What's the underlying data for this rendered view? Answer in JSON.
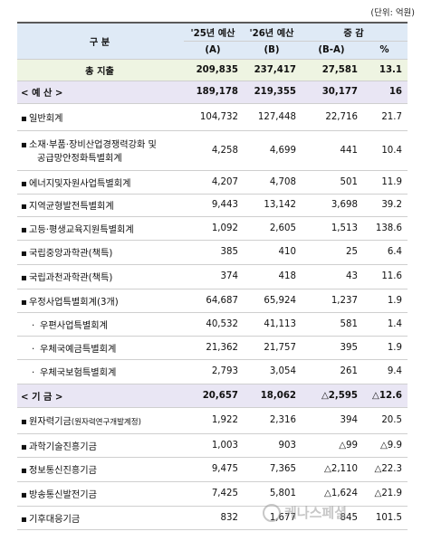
{
  "unit_note": "(단위: 억원)",
  "header": {
    "category": "구   분",
    "col_a_line1": "'25년 예산",
    "col_a_line2": "(A)",
    "col_b_line1": "'26년 예산",
    "col_b_line2": "(B)",
    "change_label": "증 감",
    "change_diff": "(B-A)",
    "change_pct": "%"
  },
  "total": {
    "name": "총 지출",
    "a": "209,835",
    "b": "237,417",
    "diff": "27,581",
    "pct": "13.1"
  },
  "budget_section": {
    "name": "< 예 산 >",
    "a": "189,178",
    "b": "219,355",
    "diff": "30,177",
    "pct": "16",
    "rows": [
      {
        "bullet": "▪",
        "name": "일반회계",
        "a": "104,732",
        "b": "127,448",
        "diff": "22,716",
        "pct": "21.7"
      },
      {
        "bullet": "▪",
        "name": "소재·부품·장비산업경쟁력강화 및",
        "name2": "공급망안정화특별회계",
        "a": "4,258",
        "b": "4,699",
        "diff": "441",
        "pct": "10.4"
      },
      {
        "bullet": "▪",
        "name": "에너지및자원사업특별회계",
        "a": "4,207",
        "b": "4,708",
        "diff": "501",
        "pct": "11.9"
      },
      {
        "bullet": "▪",
        "name": "지역균형발전특별회계",
        "a": "9,443",
        "b": "13,142",
        "diff": "3,698",
        "pct": "39.2"
      },
      {
        "bullet": "▪",
        "name": "고등·평생교육지원특별회계",
        "a": "1,092",
        "b": "2,605",
        "diff": "1,513",
        "pct": "138.6"
      },
      {
        "bullet": "▪",
        "name": "국립중앙과학관(책특)",
        "a": "385",
        "b": "410",
        "diff": "25",
        "pct": "6.4"
      },
      {
        "bullet": "▪",
        "name": "국립과천과학관(책특)",
        "a": "374",
        "b": "418",
        "diff": "43",
        "pct": "11.6"
      },
      {
        "bullet": "▪",
        "name": "우정사업특별회계(3개)",
        "a": "64,687",
        "b": "65,924",
        "diff": "1,237",
        "pct": "1.9"
      },
      {
        "bullet": "·",
        "name": "우편사업특별회계",
        "a": "40,532",
        "b": "41,113",
        "diff": "581",
        "pct": "1.4",
        "sub": true
      },
      {
        "bullet": "·",
        "name": "우체국예금특별회계",
        "a": "21,362",
        "b": "21,757",
        "diff": "395",
        "pct": "1.9",
        "sub": true
      },
      {
        "bullet": "·",
        "name": "우체국보험특별회계",
        "a": "2,793",
        "b": "3,054",
        "diff": "261",
        "pct": "9.4",
        "sub": true
      }
    ]
  },
  "fund_section": {
    "name": "< 기 금 >",
    "a": "20,657",
    "b": "18,062",
    "diff": "△2,595",
    "pct": "△12.6",
    "rows": [
      {
        "bullet": "▪",
        "name": "원자력기금",
        "name_small": "(원자력연구개발계정)",
        "a": "1,922",
        "b": "2,316",
        "diff": "394",
        "pct": "20.5"
      },
      {
        "bullet": "▪",
        "name": "과학기술진흥기금",
        "a": "1,003",
        "b": "903",
        "diff": "△99",
        "pct": "△9.9"
      },
      {
        "bullet": "▪",
        "name": "정보통신진흥기금",
        "a": "9,475",
        "b": "7,365",
        "diff": "△2,110",
        "pct": "△22.3"
      },
      {
        "bullet": "▪",
        "name": "방송통신발전기금",
        "a": "7,425",
        "b": "5,801",
        "diff": "△1,624",
        "pct": "△21.9"
      },
      {
        "bullet": "▪",
        "name": "기후대응기금",
        "a": "832",
        "b": "1,677",
        "diff": "845",
        "pct": "101.5"
      }
    ]
  },
  "watermark": {
    "text": "케나스페셜"
  }
}
